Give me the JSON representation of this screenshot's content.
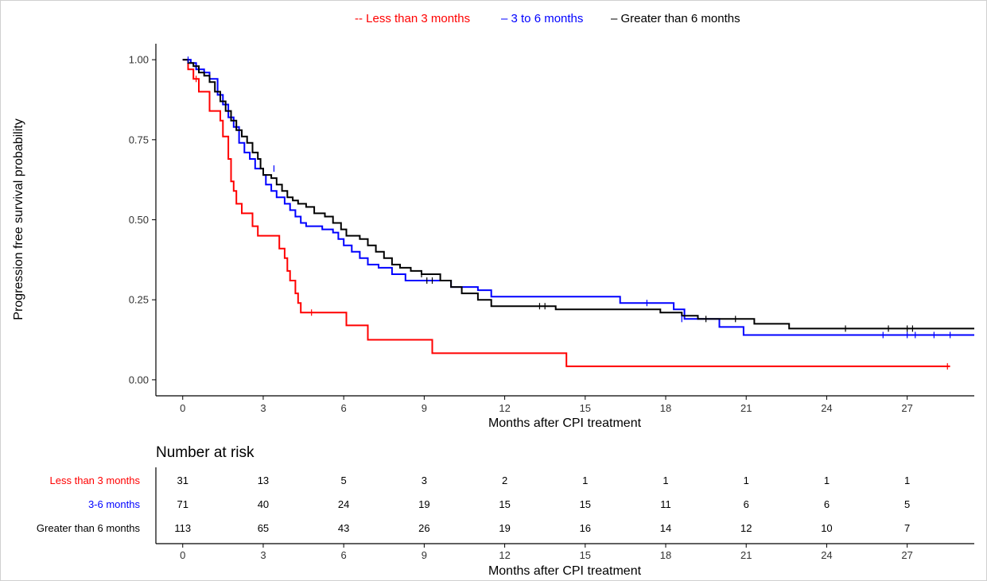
{
  "chart_data": {
    "type": "line",
    "subtype": "kaplan-meier step",
    "ylabel": "Progression free survival probability",
    "xlabel": "Months after CPI treatment",
    "xlim": [
      -1,
      29.5
    ],
    "ylim": [
      -0.05,
      1.05
    ],
    "x_ticks": [
      0,
      3,
      6,
      9,
      12,
      15,
      18,
      21,
      24,
      27
    ],
    "y_ticks": [
      0,
      0.25,
      0.5,
      0.75,
      1.0
    ],
    "y_tick_labels": [
      "0.00",
      "0.25",
      "0.50",
      "0.75",
      "1.00"
    ],
    "legend_position": "top-center",
    "series": [
      {
        "name": "Less than 3 months",
        "legend_label": "-- Less than 3 months",
        "color": "#ff0000",
        "steps": [
          [
            0,
            1.0
          ],
          [
            0.2,
            0.97
          ],
          [
            0.4,
            0.94
          ],
          [
            0.6,
            0.9
          ],
          [
            1.0,
            0.84
          ],
          [
            1.4,
            0.81
          ],
          [
            1.5,
            0.76
          ],
          [
            1.7,
            0.69
          ],
          [
            1.8,
            0.62
          ],
          [
            1.9,
            0.59
          ],
          [
            2.0,
            0.55
          ],
          [
            2.2,
            0.52
          ],
          [
            2.6,
            0.48
          ],
          [
            2.8,
            0.45
          ],
          [
            3.6,
            0.41
          ],
          [
            3.8,
            0.38
          ],
          [
            3.9,
            0.34
          ],
          [
            4.0,
            0.31
          ],
          [
            4.2,
            0.27
          ],
          [
            4.3,
            0.24
          ],
          [
            4.4,
            0.21
          ],
          [
            6.1,
            0.17
          ],
          [
            6.9,
            0.125
          ],
          [
            9.3,
            0.083
          ],
          [
            14.3,
            0.042
          ],
          [
            28.6,
            0.042
          ]
        ],
        "censored": [
          [
            0.5,
            0.94
          ],
          [
            4.8,
            0.21
          ],
          [
            28.5,
            0.042
          ]
        ]
      },
      {
        "name": "3 to 6 months",
        "legend_label": "– 3 to 6 months",
        "color": "#0000ff",
        "steps": [
          [
            0,
            1.0
          ],
          [
            0.3,
            0.99
          ],
          [
            0.5,
            0.97
          ],
          [
            0.8,
            0.96
          ],
          [
            1.0,
            0.94
          ],
          [
            1.3,
            0.89
          ],
          [
            1.5,
            0.86
          ],
          [
            1.7,
            0.82
          ],
          [
            1.9,
            0.79
          ],
          [
            2.1,
            0.74
          ],
          [
            2.3,
            0.71
          ],
          [
            2.5,
            0.69
          ],
          [
            2.7,
            0.66
          ],
          [
            3.0,
            0.64
          ],
          [
            3.1,
            0.61
          ],
          [
            3.3,
            0.59
          ],
          [
            3.5,
            0.57
          ],
          [
            3.8,
            0.55
          ],
          [
            4.0,
            0.53
          ],
          [
            4.2,
            0.51
          ],
          [
            4.4,
            0.49
          ],
          [
            4.6,
            0.48
          ],
          [
            5.2,
            0.47
          ],
          [
            5.6,
            0.46
          ],
          [
            5.8,
            0.44
          ],
          [
            6.0,
            0.42
          ],
          [
            6.3,
            0.4
          ],
          [
            6.6,
            0.38
          ],
          [
            6.9,
            0.36
          ],
          [
            7.3,
            0.35
          ],
          [
            7.8,
            0.33
          ],
          [
            8.3,
            0.31
          ],
          [
            9.1,
            0.31
          ],
          [
            10.0,
            0.29
          ],
          [
            11.0,
            0.28
          ],
          [
            11.5,
            0.26
          ],
          [
            16.3,
            0.24
          ],
          [
            18.3,
            0.22
          ],
          [
            18.7,
            0.19
          ],
          [
            20.0,
            0.165
          ],
          [
            20.9,
            0.14
          ],
          [
            29.5,
            0.14
          ]
        ],
        "censored": [
          [
            0.2,
            1.0
          ],
          [
            3.4,
            0.66
          ],
          [
            17.3,
            0.24
          ],
          [
            18.6,
            0.19
          ],
          [
            26.1,
            0.14
          ],
          [
            27.0,
            0.14
          ],
          [
            27.3,
            0.14
          ],
          [
            28.0,
            0.14
          ],
          [
            28.6,
            0.14
          ]
        ]
      },
      {
        "name": "Greater than 6 months",
        "legend_label": "– Greater than 6 months",
        "color": "#000000",
        "steps": [
          [
            0,
            1.0
          ],
          [
            0.2,
            0.99
          ],
          [
            0.4,
            0.98
          ],
          [
            0.6,
            0.96
          ],
          [
            0.8,
            0.95
          ],
          [
            1.0,
            0.93
          ],
          [
            1.2,
            0.9
          ],
          [
            1.4,
            0.87
          ],
          [
            1.6,
            0.84
          ],
          [
            1.8,
            0.81
          ],
          [
            2.0,
            0.78
          ],
          [
            2.2,
            0.76
          ],
          [
            2.4,
            0.74
          ],
          [
            2.6,
            0.71
          ],
          [
            2.8,
            0.69
          ],
          [
            2.9,
            0.66
          ],
          [
            3.0,
            0.64
          ],
          [
            3.3,
            0.63
          ],
          [
            3.5,
            0.61
          ],
          [
            3.7,
            0.59
          ],
          [
            3.9,
            0.57
          ],
          [
            4.1,
            0.56
          ],
          [
            4.3,
            0.55
          ],
          [
            4.6,
            0.54
          ],
          [
            4.9,
            0.52
          ],
          [
            5.3,
            0.51
          ],
          [
            5.6,
            0.49
          ],
          [
            5.9,
            0.47
          ],
          [
            6.1,
            0.45
          ],
          [
            6.6,
            0.44
          ],
          [
            6.9,
            0.42
          ],
          [
            7.2,
            0.4
          ],
          [
            7.5,
            0.38
          ],
          [
            7.8,
            0.36
          ],
          [
            8.1,
            0.35
          ],
          [
            8.5,
            0.34
          ],
          [
            8.9,
            0.33
          ],
          [
            9.6,
            0.31
          ],
          [
            10.0,
            0.29
          ],
          [
            10.4,
            0.27
          ],
          [
            11.0,
            0.25
          ],
          [
            11.5,
            0.23
          ],
          [
            13.9,
            0.22
          ],
          [
            17.8,
            0.21
          ],
          [
            18.6,
            0.2
          ],
          [
            19.2,
            0.19
          ],
          [
            21.3,
            0.175
          ],
          [
            22.6,
            0.16
          ],
          [
            29.5,
            0.16
          ]
        ],
        "censored": [
          [
            8.9,
            0.33
          ],
          [
            9.1,
            0.31
          ],
          [
            9.3,
            0.31
          ],
          [
            13.3,
            0.23
          ],
          [
            13.5,
            0.23
          ],
          [
            19.5,
            0.19
          ],
          [
            20.6,
            0.19
          ],
          [
            24.7,
            0.16
          ],
          [
            26.3,
            0.16
          ],
          [
            27.0,
            0.16
          ],
          [
            27.2,
            0.16
          ]
        ]
      }
    ]
  },
  "risk_table": {
    "title": "Number at risk",
    "xlabel": "Months after CPI treatment",
    "x_ticks": [
      0,
      3,
      6,
      9,
      12,
      15,
      18,
      21,
      24,
      27
    ],
    "rows": [
      {
        "label": "Less than 3 months",
        "color": "#ff0000",
        "values": [
          31,
          13,
          5,
          3,
          2,
          1,
          1,
          1,
          1,
          1
        ]
      },
      {
        "label": "3-6 months",
        "color": "#0000ff",
        "values": [
          71,
          40,
          24,
          19,
          15,
          15,
          11,
          6,
          6,
          5
        ]
      },
      {
        "label": "Greater than 6 months",
        "color": "#000000",
        "values": [
          113,
          65,
          43,
          26,
          19,
          16,
          14,
          12,
          10,
          7
        ]
      }
    ]
  }
}
